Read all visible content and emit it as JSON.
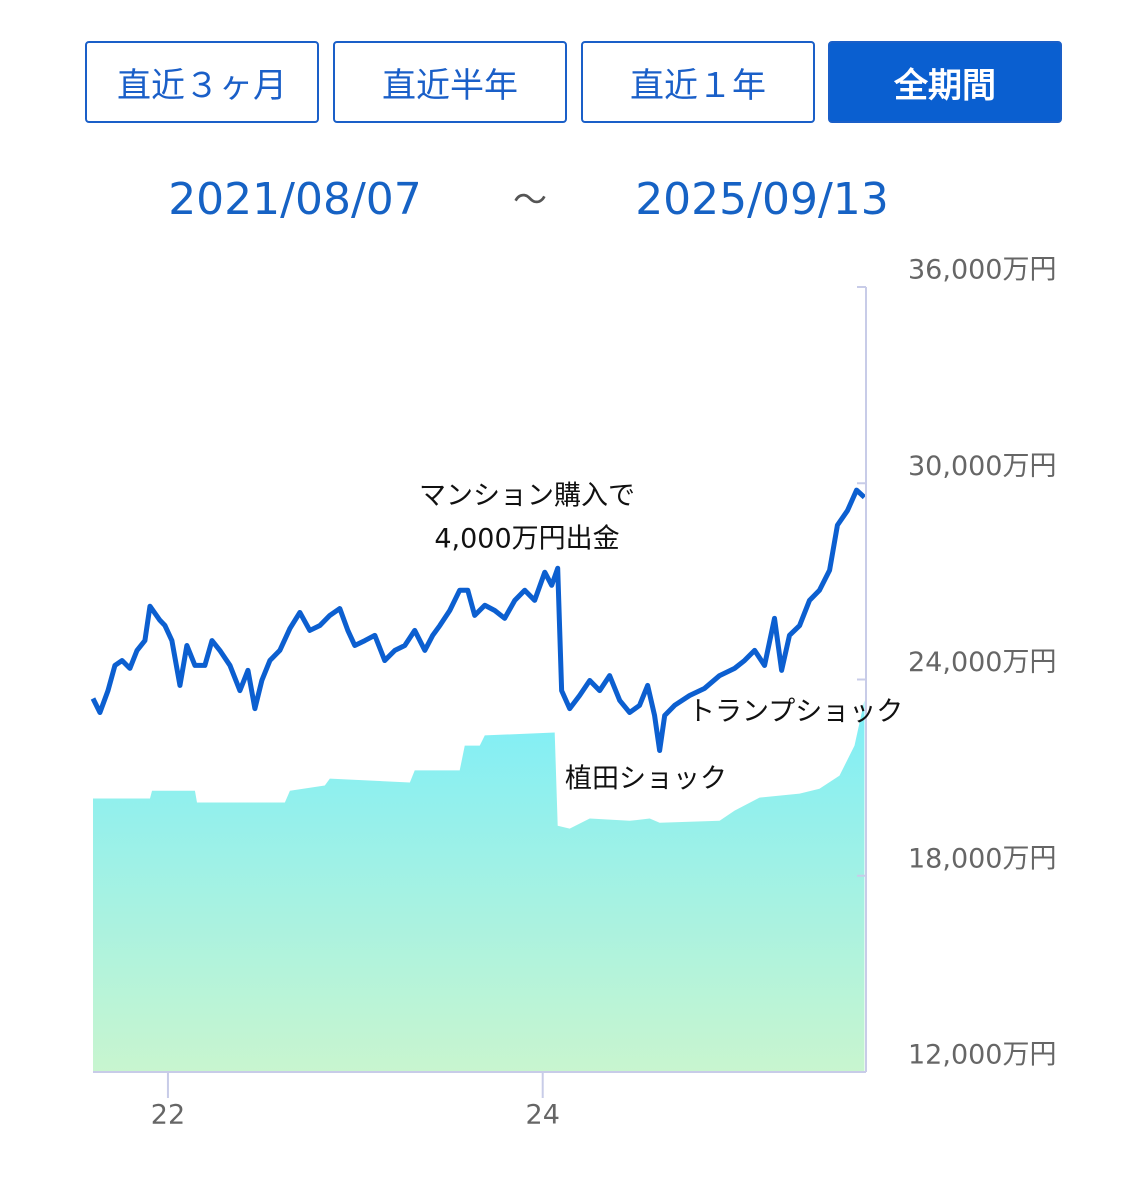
{
  "controls": {
    "buttons": [
      "直近３ヶ月",
      "直近半年",
      "直近１年",
      "全期間"
    ],
    "active": 3
  },
  "date_range": {
    "start": "2021/08/07",
    "separator": "～",
    "end": "2025/09/13"
  },
  "chart_data": {
    "type": "line",
    "xlim": [
      21.6,
      25.72
    ],
    "xticks": [
      22,
      24
    ],
    "ylim": [
      12000,
      36000
    ],
    "yticks": [
      {
        "value": 12000,
        "label": "12,000万円"
      },
      {
        "value": 18000,
        "label": "18,000万円"
      },
      {
        "value": 24000,
        "label": "24,000万円"
      },
      {
        "value": 30000,
        "label": "30,000万円"
      },
      {
        "value": 36000,
        "label": "36,000万円"
      }
    ],
    "series": [
      {
        "type": "line",
        "color": "#0c5fd0",
        "x": [
          21.6,
          21.637,
          21.68,
          21.717,
          21.755,
          21.797,
          21.835,
          21.877,
          21.904,
          21.957,
          21.984,
          22.021,
          22.064,
          22.101,
          22.144,
          22.197,
          22.235,
          22.277,
          22.331,
          22.384,
          22.427,
          22.464,
          22.501,
          22.544,
          22.597,
          22.651,
          22.704,
          22.757,
          22.811,
          22.864,
          22.917,
          22.96,
          22.997,
          23.051,
          23.104,
          23.157,
          23.211,
          23.264,
          23.317,
          23.371,
          23.413,
          23.451,
          23.504,
          23.557,
          23.6,
          23.637,
          23.691,
          23.744,
          23.797,
          23.851,
          23.904,
          23.957,
          24.011,
          24.048,
          24.08,
          24.101,
          24.144,
          24.197,
          24.251,
          24.304,
          24.357,
          24.411,
          24.464,
          24.517,
          24.56,
          24.597,
          24.624,
          24.651,
          24.704,
          24.784,
          24.864,
          24.944,
          25.024,
          25.077,
          25.131,
          25.184,
          25.237,
          25.275,
          25.317,
          25.371,
          25.424,
          25.477,
          25.531,
          25.573,
          25.627,
          25.675,
          25.717
        ],
        "values": [
          23420,
          22990,
          23660,
          24430,
          24580,
          24340,
          24890,
          25190,
          26240,
          25810,
          25650,
          25190,
          23820,
          25040,
          24430,
          24430,
          25190,
          24890,
          24430,
          23660,
          24280,
          23110,
          23970,
          24580,
          24890,
          25560,
          26050,
          25500,
          25650,
          25960,
          26170,
          25500,
          25040,
          25190,
          25350,
          24580,
          24890,
          25040,
          25500,
          24890,
          25350,
          25650,
          26110,
          26730,
          26730,
          25960,
          26270,
          26110,
          25870,
          26420,
          26730,
          26420,
          27280,
          26880,
          27400,
          23660,
          23110,
          23510,
          23970,
          23660,
          24120,
          23360,
          22990,
          23210,
          23820,
          22900,
          21830,
          22900,
          23210,
          23510,
          23730,
          24120,
          24340,
          24580,
          24890,
          24430,
          25870,
          24280,
          25350,
          25650,
          26420,
          26730,
          27340,
          28720,
          29170,
          29790,
          29570
        ]
      },
      {
        "type": "area",
        "color": "#7eeaf7",
        "x": [
          21.6,
          21.904,
          21.915,
          22.144,
          22.155,
          22.624,
          22.651,
          22.837,
          22.864,
          23.291,
          23.317,
          23.557,
          23.584,
          23.664,
          23.691,
          24.064,
          24.08,
          24.144,
          24.251,
          24.464,
          24.571,
          24.624,
          24.944,
          25.024,
          25.157,
          25.371,
          25.477,
          25.584,
          25.664,
          25.717
        ],
        "values": [
          20360,
          20360,
          20600,
          20600,
          20240,
          20240,
          20600,
          20760,
          20970,
          20850,
          21220,
          21220,
          21980,
          21980,
          22290,
          22380,
          19530,
          19440,
          19750,
          19680,
          19750,
          19620,
          19680,
          19990,
          20390,
          20510,
          20660,
          21060,
          21980,
          23360
        ]
      }
    ],
    "annotations": [
      {
        "lines": [
          "マンション購入で",
          "4,000万円出金"
        ]
      },
      {
        "lines": [
          "植田ショック"
        ]
      },
      {
        "lines": [
          "トランプショック"
        ]
      }
    ]
  }
}
